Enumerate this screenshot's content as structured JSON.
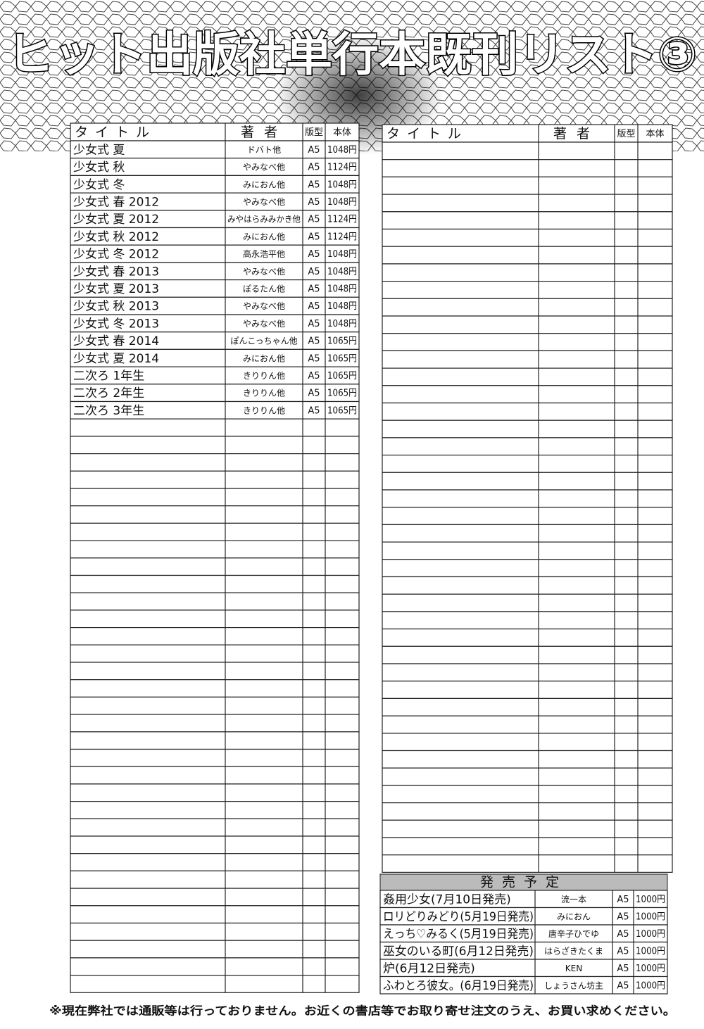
{
  "header": {
    "title": "ヒット出版社単行本既刊リスト③"
  },
  "left_table": {
    "columns": [
      "タイトル",
      "著者",
      "版型",
      "本体"
    ],
    "rows": [
      [
        "少女式 夏",
        "ドバト他",
        "A5",
        "1048円"
      ],
      [
        "少女式 秋",
        "やみなべ他",
        "A5",
        "1124円"
      ],
      [
        "少女式 冬",
        "みにおん他",
        "A5",
        "1048円"
      ],
      [
        "少女式 春 2012",
        "やみなべ他",
        "A5",
        "1048円"
      ],
      [
        "少女式 夏 2012",
        "みやはらみみかき他",
        "A5",
        "1124円"
      ],
      [
        "少女式 秋 2012",
        "みにおん他",
        "A5",
        "1124円"
      ],
      [
        "少女式 冬 2012",
        "高永浩平他",
        "A5",
        "1048円"
      ],
      [
        "少女式 春 2013",
        "やみなべ他",
        "A5",
        "1048円"
      ],
      [
        "少女式 夏 2013",
        "ぽるたん他",
        "A5",
        "1048円"
      ],
      [
        "少女式 秋 2013",
        "やみなべ他",
        "A5",
        "1048円"
      ],
      [
        "少女式 冬 2013",
        "やみなべ他",
        "A5",
        "1048円"
      ],
      [
        "少女式 春 2014",
        "ぽんこっちゃん他",
        "A5",
        "1065円"
      ],
      [
        "少女式 夏 2014",
        "みにおん他",
        "A5",
        "1065円"
      ],
      [
        "二次ろ 1年生",
        "きりりん他",
        "A5",
        "1065円"
      ],
      [
        "二次ろ 2年生",
        "きりりん他",
        "A5",
        "1065円"
      ],
      [
        "二次ろ 3年生",
        "きりりん他",
        "A5",
        "1065円"
      ]
    ]
  },
  "right_table": {
    "columns": [
      "タイトル",
      "著者",
      "版型",
      "本体"
    ]
  },
  "upcoming": {
    "heading": "発売予定",
    "rows": [
      [
        "姦用少女(7月10日発売)",
        "流一本",
        "A5",
        "1000円"
      ],
      [
        "ロリどりみどり(5月19日発売)",
        "みにおん",
        "A5",
        "1000円"
      ],
      [
        "えっち♡みるく(5月19日発売)",
        "唐辛子ひでゆ",
        "A5",
        "1000円"
      ],
      [
        "巫女のいる町(6月12日発売)",
        "はらざきたくま",
        "A5",
        "1000円"
      ],
      [
        "炉(6月12日発売)",
        "KEN",
        "A5",
        "1000円"
      ],
      [
        "ふわとろ彼女。(6月19日発売)",
        "しょうさん坊主",
        "A5",
        "1000円"
      ]
    ]
  },
  "footer": {
    "note": "※現在弊社では通販等は行っておりません。お近くの書店等でお取り寄せ注文のうえ、お買い求めください。"
  }
}
